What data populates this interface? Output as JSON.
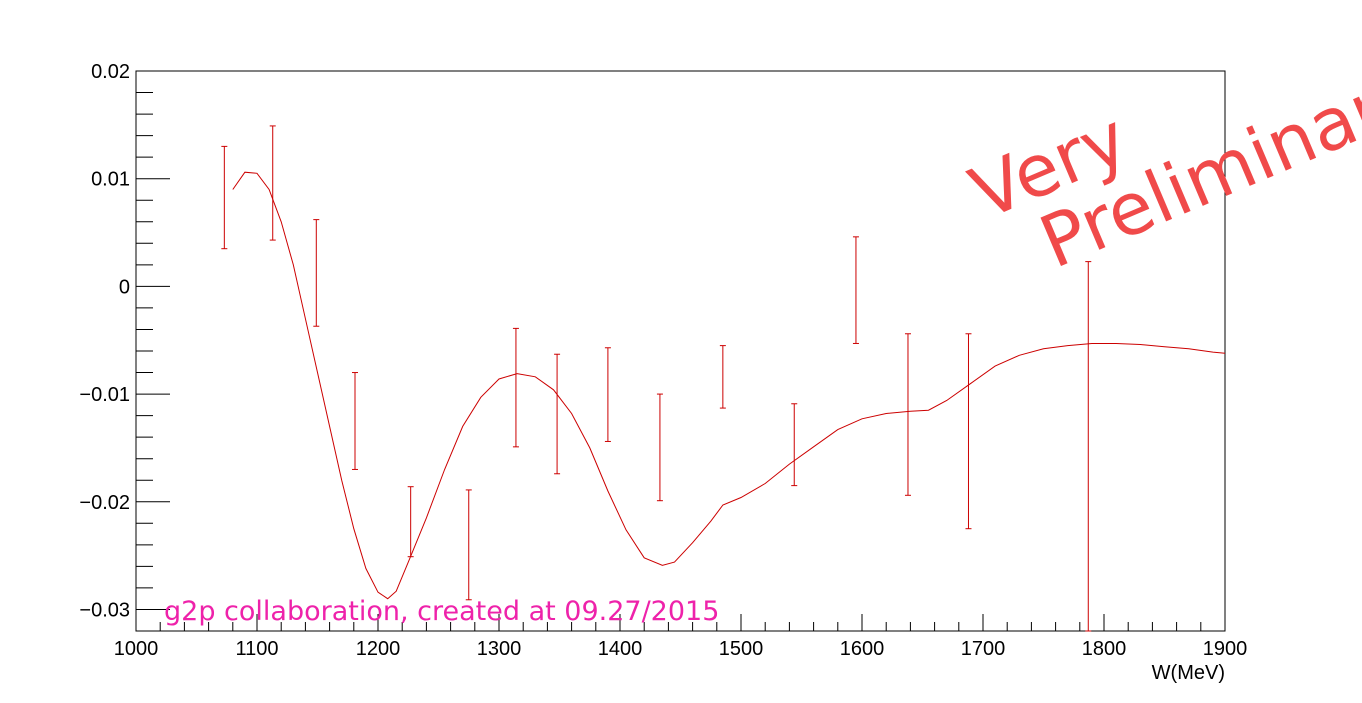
{
  "chart_data": {
    "type": "scatter",
    "title": "",
    "xlabel": "W(MeV)",
    "ylabel": "",
    "xlim": [
      1000,
      1900
    ],
    "ylim": [
      -0.032,
      0.02
    ],
    "x_ticks": [
      1000,
      1100,
      1200,
      1300,
      1400,
      1500,
      1600,
      1700,
      1800,
      1900
    ],
    "x_tick_labels": [
      "1000",
      "1100",
      "1200",
      "1300",
      "1400",
      "1500",
      "1600",
      "1700",
      "1800",
      "1900"
    ],
    "y_ticks": [
      0.02,
      0.01,
      0,
      -0.01,
      -0.02,
      -0.03
    ],
    "y_tick_labels": [
      "0.02",
      "0.01",
      "0",
      "−0.01",
      "−0.02",
      "−0.03"
    ],
    "grid": false,
    "color": "#cc0000",
    "points": [
      {
        "x": 1073,
        "y_low": 0.0035,
        "y_high": 0.013
      },
      {
        "x": 1113,
        "y_low": 0.0043,
        "y_high": 0.0149
      },
      {
        "x": 1149,
        "y_low": -0.0037,
        "y_high": 0.0062
      },
      {
        "x": 1181,
        "y_low": -0.017,
        "y_high": -0.008
      },
      {
        "x": 1227,
        "y_low": -0.0251,
        "y_high": -0.0186
      },
      {
        "x": 1275,
        "y_low": -0.0291,
        "y_high": -0.0189
      },
      {
        "x": 1314,
        "y_low": -0.0149,
        "y_high": -0.0039
      },
      {
        "x": 1348,
        "y_low": -0.0174,
        "y_high": -0.0063
      },
      {
        "x": 1390,
        "y_low": -0.0144,
        "y_high": -0.0057
      },
      {
        "x": 1433,
        "y_low": -0.0199,
        "y_high": -0.01
      },
      {
        "x": 1485,
        "y_low": -0.0113,
        "y_high": -0.0055
      },
      {
        "x": 1544,
        "y_low": -0.0185,
        "y_high": -0.0109
      },
      {
        "x": 1595,
        "y_low": -0.0053,
        "y_high": 0.0046
      },
      {
        "x": 1638,
        "y_low": -0.0194,
        "y_high": -0.0044
      },
      {
        "x": 1688,
        "y_low": -0.0225,
        "y_high": -0.0044
      },
      {
        "x": 1787,
        "y_low": -0.032,
        "y_high": 0.0023
      }
    ],
    "fit_curve": [
      [
        1080,
        0.009
      ],
      [
        1090,
        0.0106
      ],
      [
        1100,
        0.0105
      ],
      [
        1110,
        0.009
      ],
      [
        1120,
        0.006
      ],
      [
        1130,
        0.002
      ],
      [
        1140,
        -0.003
      ],
      [
        1150,
        -0.008
      ],
      [
        1160,
        -0.013
      ],
      [
        1170,
        -0.018
      ],
      [
        1180,
        -0.0225
      ],
      [
        1190,
        -0.0262
      ],
      [
        1200,
        -0.0284
      ],
      [
        1208,
        -0.029
      ],
      [
        1215,
        -0.0283
      ],
      [
        1225,
        -0.0256
      ],
      [
        1240,
        -0.0215
      ],
      [
        1255,
        -0.017
      ],
      [
        1270,
        -0.013
      ],
      [
        1285,
        -0.0103
      ],
      [
        1300,
        -0.0086
      ],
      [
        1315,
        -0.0081
      ],
      [
        1330,
        -0.0084
      ],
      [
        1345,
        -0.0096
      ],
      [
        1360,
        -0.0118
      ],
      [
        1375,
        -0.015
      ],
      [
        1390,
        -0.019
      ],
      [
        1405,
        -0.0226
      ],
      [
        1420,
        -0.0252
      ],
      [
        1435,
        -0.0259
      ],
      [
        1445,
        -0.0256
      ],
      [
        1460,
        -0.0238
      ],
      [
        1475,
        -0.0218
      ],
      [
        1485,
        -0.0203
      ],
      [
        1500,
        -0.0196
      ],
      [
        1520,
        -0.0183
      ],
      [
        1540,
        -0.0165
      ],
      [
        1560,
        -0.0149
      ],
      [
        1580,
        -0.0133
      ],
      [
        1600,
        -0.0123
      ],
      [
        1620,
        -0.0118
      ],
      [
        1640,
        -0.0116
      ],
      [
        1655,
        -0.0115
      ],
      [
        1670,
        -0.0106
      ],
      [
        1690,
        -0.009
      ],
      [
        1710,
        -0.0074
      ],
      [
        1730,
        -0.0064
      ],
      [
        1750,
        -0.0058
      ],
      [
        1770,
        -0.0055
      ],
      [
        1790,
        -0.0053
      ],
      [
        1810,
        -0.0053
      ],
      [
        1830,
        -0.0054
      ],
      [
        1850,
        -0.0056
      ],
      [
        1870,
        -0.0058
      ],
      [
        1890,
        -0.0061
      ],
      [
        1900,
        -0.0062
      ]
    ],
    "annotations": {
      "collaboration_note": "g2p collaboration, created at 09.27/2015",
      "collaboration_note_color": "#ee22aa",
      "stamp_line1": "Very",
      "stamp_line2": "Preliminary",
      "stamp_color": "#f04a4a"
    }
  }
}
